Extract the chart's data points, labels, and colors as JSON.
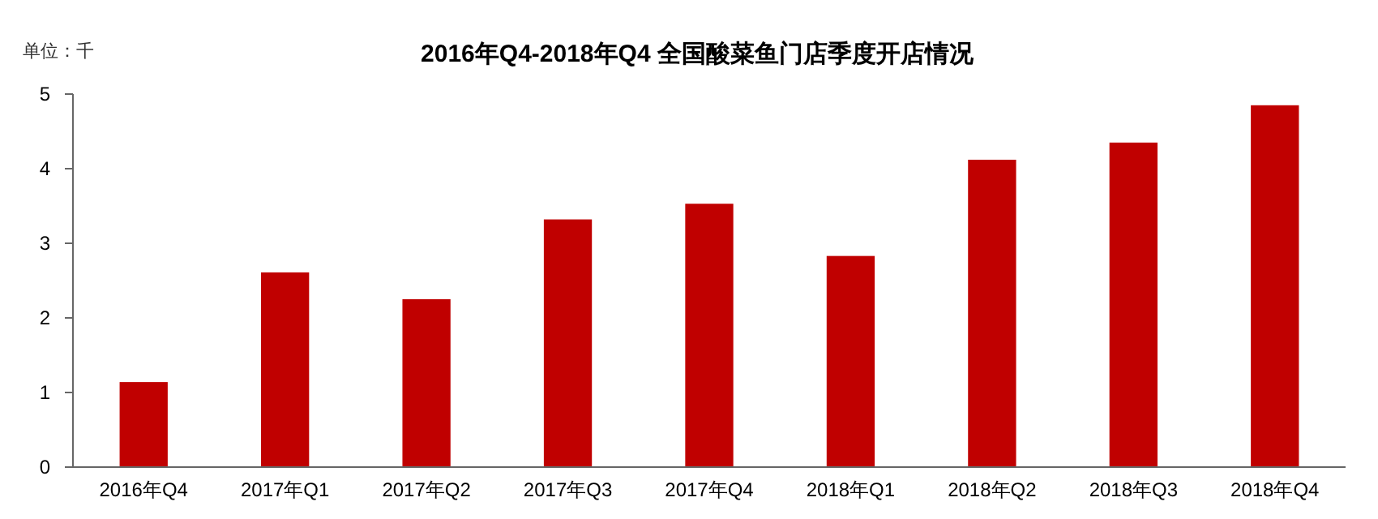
{
  "chart_data": {
    "type": "bar",
    "title": "2016年Q4-2018年Q4 全国酸菜鱼门店季度开店情况",
    "ylabel": "单位：千",
    "categories": [
      "2016年Q4",
      "2017年Q1",
      "2017年Q2",
      "2017年Q3",
      "2017年Q4",
      "2018年Q1",
      "2018年Q2",
      "2018年Q3",
      "2018年Q4"
    ],
    "values": [
      1.14,
      2.61,
      2.25,
      3.32,
      3.53,
      2.83,
      4.12,
      4.35,
      4.85
    ],
    "color": "#c00000",
    "ylim": [
      0,
      5
    ],
    "yticks": [
      0,
      1,
      2,
      3,
      4,
      5
    ],
    "grid": false
  }
}
